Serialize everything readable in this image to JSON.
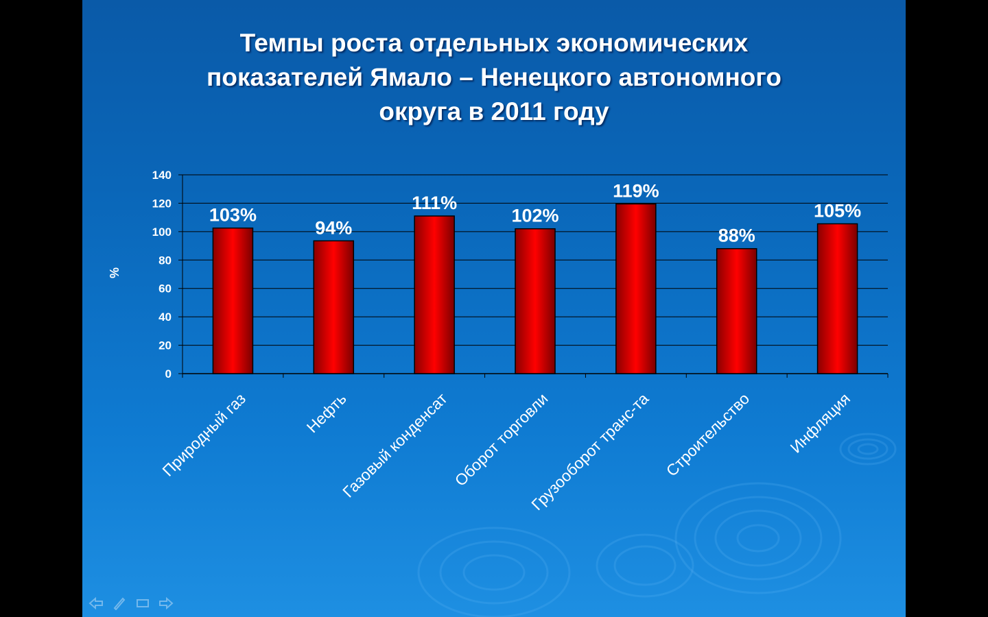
{
  "slide": {
    "title_lines": [
      "Темпы роста отдельных экономических",
      "показателей Ямало – Ненецкого автономного",
      "округа в 2011 году"
    ]
  },
  "chart_data": {
    "type": "bar",
    "categories": [
      "Природный газ",
      "Нефть",
      "Газовый конденсат",
      "Оборот торговли",
      "Грузооборот транс-та",
      "Строительство",
      "Инфляция"
    ],
    "values": [
      103,
      94,
      111,
      102,
      119,
      88,
      105
    ],
    "data_labels": [
      "103%",
      "94%",
      "111%",
      "102%",
      "119%",
      "88%",
      "105%"
    ],
    "bar_heights": [
      102.5,
      93.5,
      111,
      102,
      119.5,
      88,
      105.5
    ],
    "title": "Темпы роста отдельных экономических показателей Ямало – Ненецкого автономного округа в 2011 году",
    "xlabel": "",
    "ylabel": "%",
    "ylim": [
      0,
      140
    ],
    "yticks": [
      0,
      20,
      40,
      60,
      80,
      100,
      120,
      140
    ],
    "grid": true,
    "legend": "none",
    "bar_color": "#ff0000",
    "bar_edge_color": "#000000"
  },
  "nav": {
    "icons": [
      "arrow-left-icon",
      "pen-icon",
      "screen-icon",
      "arrow-right-icon"
    ]
  },
  "colors": {
    "background_top": "#0a5aa8",
    "background_bottom": "#1e8fe2",
    "text": "#ffffff",
    "gridline": "#000000"
  }
}
